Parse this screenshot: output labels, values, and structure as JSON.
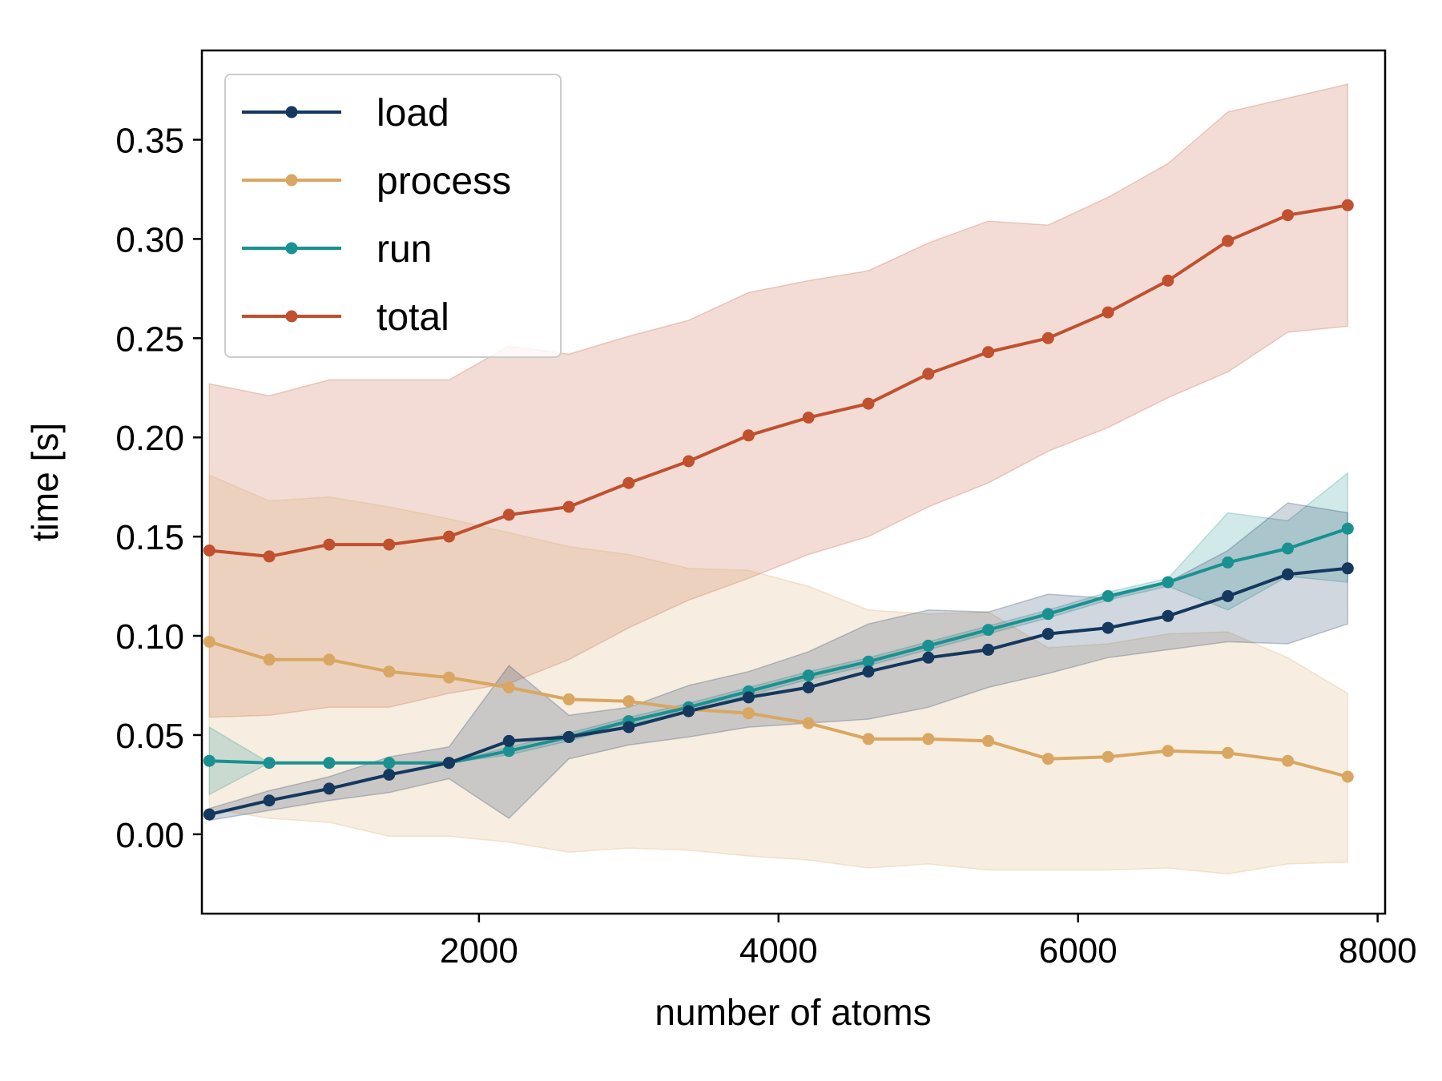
{
  "chart_data": {
    "type": "line",
    "xlabel": "number of atoms",
    "ylabel": "time [s]",
    "xlim": [
      150,
      8050
    ],
    "ylim": [
      -0.04,
      0.395
    ],
    "xticks": [
      2000,
      4000,
      6000,
      8000
    ],
    "xtick_labels": [
      "2000",
      "4000",
      "6000",
      "8000"
    ],
    "yticks": [
      0.0,
      0.05,
      0.1,
      0.15,
      0.2,
      0.25,
      0.3,
      0.35
    ],
    "ytick_labels": [
      "0.00",
      "0.05",
      "0.10",
      "0.15",
      "0.20",
      "0.25",
      "0.30",
      "0.35"
    ],
    "grid": false,
    "legend_position": "top-left",
    "x": [
      200,
      600,
      1000,
      1400,
      1800,
      2200,
      2600,
      3000,
      3400,
      3800,
      4200,
      4600,
      5000,
      5400,
      5800,
      6200,
      6600,
      7000,
      7400,
      7800
    ],
    "series": [
      {
        "name": "total",
        "color": "#c0502e",
        "values": [
          0.143,
          0.14,
          0.146,
          0.146,
          0.15,
          0.161,
          0.165,
          0.177,
          0.188,
          0.201,
          0.21,
          0.217,
          0.232,
          0.243,
          0.25,
          0.263,
          0.279,
          0.299,
          0.312,
          0.317
        ],
        "lower": [
          0.059,
          0.06,
          0.064,
          0.064,
          0.071,
          0.076,
          0.088,
          0.104,
          0.118,
          0.129,
          0.141,
          0.15,
          0.165,
          0.177,
          0.193,
          0.205,
          0.22,
          0.233,
          0.253,
          0.256
        ],
        "upper": [
          0.227,
          0.221,
          0.229,
          0.229,
          0.229,
          0.246,
          0.242,
          0.251,
          0.259,
          0.273,
          0.279,
          0.284,
          0.298,
          0.309,
          0.307,
          0.321,
          0.338,
          0.364,
          0.371,
          0.378
        ]
      },
      {
        "name": "process",
        "color": "#d9a762",
        "values": [
          0.097,
          0.088,
          0.088,
          0.082,
          0.079,
          0.074,
          0.068,
          0.067,
          0.063,
          0.061,
          0.056,
          0.048,
          0.048,
          0.047,
          0.038,
          0.039,
          0.042,
          0.041,
          0.037,
          0.029
        ],
        "lower": [
          0.013,
          0.008,
          0.006,
          -0.001,
          -0.001,
          -0.004,
          -0.009,
          -0.007,
          -0.008,
          -0.011,
          -0.013,
          -0.017,
          -0.015,
          -0.018,
          -0.018,
          -0.018,
          -0.017,
          -0.02,
          -0.015,
          -0.014
        ],
        "upper": [
          0.181,
          0.168,
          0.17,
          0.165,
          0.159,
          0.152,
          0.145,
          0.141,
          0.134,
          0.133,
          0.125,
          0.113,
          0.111,
          0.112,
          0.094,
          0.096,
          0.101,
          0.102,
          0.089,
          0.071
        ]
      },
      {
        "name": "run",
        "color": "#1a9191",
        "values": [
          0.037,
          0.036,
          0.036,
          0.036,
          0.036,
          0.042,
          0.049,
          0.057,
          0.064,
          0.072,
          0.08,
          0.087,
          0.095,
          0.103,
          0.111,
          0.12,
          0.127,
          0.137,
          0.144,
          0.154
        ],
        "lower": [
          0.02,
          0.036,
          0.036,
          0.036,
          0.036,
          0.04,
          0.047,
          0.055,
          0.062,
          0.07,
          0.078,
          0.085,
          0.093,
          0.101,
          0.109,
          0.118,
          0.125,
          0.113,
          0.13,
          0.127
        ],
        "upper": [
          0.054,
          0.036,
          0.036,
          0.036,
          0.036,
          0.044,
          0.051,
          0.059,
          0.066,
          0.074,
          0.082,
          0.089,
          0.097,
          0.105,
          0.113,
          0.122,
          0.129,
          0.162,
          0.158,
          0.182
        ]
      },
      {
        "name": "load",
        "color": "#14385e",
        "values": [
          0.01,
          0.017,
          0.023,
          0.03,
          0.036,
          0.047,
          0.049,
          0.054,
          0.062,
          0.069,
          0.074,
          0.082,
          0.089,
          0.093,
          0.101,
          0.104,
          0.11,
          0.12,
          0.131,
          0.134
        ],
        "lower": [
          0.007,
          0.012,
          0.017,
          0.021,
          0.028,
          0.008,
          0.038,
          0.045,
          0.049,
          0.054,
          0.056,
          0.058,
          0.064,
          0.074,
          0.081,
          0.089,
          0.093,
          0.097,
          0.096,
          0.106
        ],
        "upper": [
          0.013,
          0.022,
          0.029,
          0.039,
          0.044,
          0.085,
          0.06,
          0.064,
          0.075,
          0.082,
          0.092,
          0.106,
          0.113,
          0.112,
          0.121,
          0.119,
          0.127,
          0.143,
          0.167,
          0.162
        ]
      }
    ],
    "legend": [
      {
        "label": "load",
        "color": "#14385e"
      },
      {
        "label": "process",
        "color": "#d9a762"
      },
      {
        "label": "run",
        "color": "#1a9191"
      },
      {
        "label": "total",
        "color": "#c0502e"
      }
    ]
  }
}
